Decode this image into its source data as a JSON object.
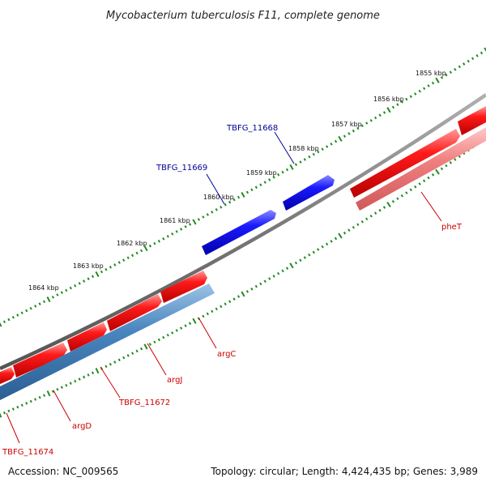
{
  "title": "Mycobacterium tuberculosis F11, complete genome",
  "footer": {
    "accession": "Accession: NC_009565",
    "summary": "Topology: circular; Length: 4,424,435 bp; Genes: 3,989"
  },
  "scale_ticks": [
    "1855 kbp",
    "1856 kbp",
    "1857 kbp",
    "1858 kbp",
    "1859 kbp",
    "1860 kbp",
    "1861 kbp",
    "1862 kbp",
    "1863 kbp",
    "1864 kbp"
  ],
  "gene_labels": {
    "tbfg_11668": "TBFG_11668",
    "tbfg_11669": "TBFG_11669",
    "phet": "pheT",
    "argc": "argC",
    "argj": "argJ",
    "tbfg_11672": "TBFG_11672",
    "argd": "argD",
    "tbfg_11674": "TBFG_11674"
  },
  "colors": {
    "plus_strand_gene": "#ff0000",
    "minus_strand_gene": "#0000ee",
    "rna_feature": "#4682b4",
    "tick_marks": "#228b22",
    "backbone": "#777777",
    "label_red": "#cc0000",
    "label_blue": "#000099"
  }
}
